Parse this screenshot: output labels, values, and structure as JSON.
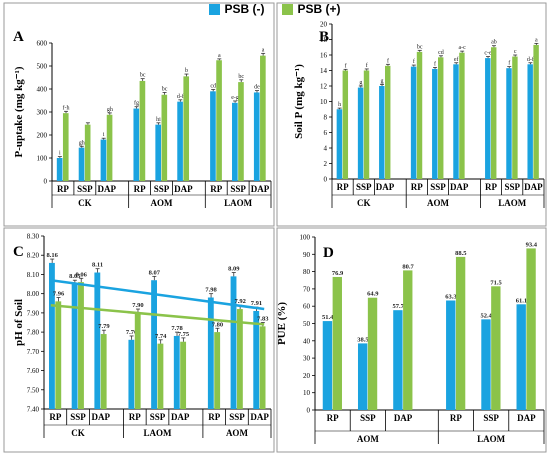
{
  "legend": [
    {
      "label": "PSB (-)",
      "color": "#1aa3e0"
    },
    {
      "label": "PSB (+)",
      "color": "#8bc34a"
    }
  ],
  "colors": {
    "psb_minus": "#1aa3e0",
    "psb_plus": "#8bc34a",
    "trend_minus": "#1aa3e0",
    "trend_plus": "#8bc34a"
  },
  "chart_data": [
    {
      "panel": "A",
      "type": "bar",
      "title": "",
      "ylabel": "P-uptake (mg kg⁻¹)",
      "xlabel": "",
      "ylim": [
        0,
        600
      ],
      "yticks": [
        0,
        100,
        200,
        300,
        400,
        500,
        600
      ],
      "ytick_labels": [
        "0",
        "100",
        "200",
        "300",
        "400",
        "500",
        "600"
      ],
      "categories": [
        "RP",
        "SSP",
        "DAP",
        "RP",
        "SSP",
        "DAP",
        "RP",
        "SSP",
        "DAP"
      ],
      "groups": [
        {
          "label": "CK",
          "count": 3
        },
        {
          "label": "AOM",
          "count": 3
        },
        {
          "label": "LAOM",
          "count": 3
        }
      ],
      "series": [
        {
          "name": "PSB (-)",
          "values": [
            100,
            145,
            180,
            315,
            245,
            345,
            390,
            340,
            385
          ],
          "errors": [
            6,
            6,
            6,
            8,
            8,
            8,
            8,
            8,
            8
          ],
          "labels": [
            "i",
            "gh",
            "i",
            "fg",
            "hi",
            "d-f",
            "cd",
            "e-g",
            "de"
          ]
        },
        {
          "name": "PSB (+)",
          "values": [
            295,
            245,
            288,
            435,
            375,
            455,
            525,
            430,
            545
          ],
          "errors": [
            8,
            8,
            8,
            10,
            10,
            10,
            6,
            10,
            10
          ],
          "labels": [
            "f-h",
            "",
            "gh",
            "bc",
            "bc",
            "b",
            "a",
            "bc",
            "a"
          ]
        }
      ]
    },
    {
      "panel": "B",
      "type": "bar",
      "title": "",
      "ylabel": "Soil P (mg kg⁻¹)",
      "xlabel": "",
      "ylim": [
        0,
        20
      ],
      "yticks": [
        0,
        2,
        4,
        6,
        8,
        10,
        12,
        14,
        16,
        18,
        20
      ],
      "ytick_labels": [
        "0",
        "2",
        "4",
        "6",
        "8",
        "10",
        "12",
        "14",
        "16",
        "18",
        "20"
      ],
      "categories": [
        "RP",
        "SSP",
        "DAP",
        "RP",
        "SSP",
        "DAP",
        "RP",
        "SSP",
        "DAP"
      ],
      "groups": [
        {
          "label": "CK",
          "count": 3
        },
        {
          "label": "AOM",
          "count": 3
        },
        {
          "label": "LAOM",
          "count": 3
        }
      ],
      "series": [
        {
          "name": "PSB (-)",
          "values": [
            9.0,
            11.8,
            12.0,
            14.5,
            14.2,
            14.8,
            15.6,
            14.3,
            14.8
          ],
          "errors": [
            0.15,
            0.2,
            0.2,
            0.2,
            0.2,
            0.2,
            0.2,
            0.2,
            0.2
          ],
          "labels": [
            "h",
            "g",
            "g",
            "f",
            "f",
            "ef",
            "c-e",
            "f",
            "d-f"
          ]
        },
        {
          "name": "PSB (+)",
          "values": [
            14.0,
            14.0,
            14.6,
            16.4,
            15.7,
            16.3,
            17.0,
            15.8,
            17.3
          ],
          "errors": [
            0.15,
            0.2,
            0.2,
            0.2,
            0.2,
            0.2,
            0.2,
            0.2,
            0.2
          ],
          "labels": [
            "f",
            "f",
            "f",
            "bc",
            "cd",
            "a-c",
            "ab",
            "c",
            "a"
          ]
        }
      ]
    },
    {
      "panel": "C",
      "type": "bar",
      "title": "",
      "ylabel": "pH of Soil",
      "xlabel": "",
      "ylim": [
        7.4,
        8.3
      ],
      "yticks": [
        7.4,
        7.5,
        7.6,
        7.7,
        7.8,
        7.9,
        8.0,
        8.1,
        8.2,
        8.3
      ],
      "ytick_labels": [
        "7.40",
        "7.50",
        "7.60",
        "7.70",
        "7.80",
        "7.90",
        "8.00",
        "8.10",
        "8.20",
        "8.30"
      ],
      "categories": [
        "RP",
        "SSP",
        "DAP",
        "RP",
        "SSP",
        "DAP",
        "RP",
        "SSP",
        "DAP"
      ],
      "groups": [
        {
          "label": "CK",
          "count": 3
        },
        {
          "label": "LAOM",
          "count": 3
        },
        {
          "label": "AOM",
          "count": 3
        }
      ],
      "series": [
        {
          "name": "PSB (-)",
          "values": [
            8.16,
            8.05,
            8.11,
            7.76,
            8.07,
            7.78,
            7.98,
            8.09,
            7.91
          ],
          "errors": [
            0.02,
            0.02,
            0.02,
            0.02,
            0.02,
            0.02,
            0.02,
            0.02,
            0.02
          ],
          "labels": [
            "8.16",
            "8.05",
            "8.11",
            "7.76",
            "8.07",
            "7.78",
            "7.98",
            "8.09",
            "7.91"
          ]
        },
        {
          "name": "PSB (+)",
          "values": [
            7.96,
            8.06,
            7.79,
            7.9,
            7.74,
            7.75,
            7.8,
            7.92,
            7.83
          ],
          "errors": [
            0.02,
            0.02,
            0.02,
            0.02,
            0.02,
            0.02,
            0.02,
            0.02,
            0.02
          ],
          "labels": [
            "7.96",
            "8.06",
            "7.79",
            "7.90",
            "7.74",
            "7.75",
            "7.80",
            "7.92",
            "7.83"
          ]
        }
      ],
      "trendlines": [
        {
          "series": "PSB (-)",
          "y_start": 8.07,
          "y_end": 7.92
        },
        {
          "series": "PSB (+)",
          "y_start": 7.94,
          "y_end": 7.84
        }
      ]
    },
    {
      "panel": "D",
      "type": "bar",
      "title": "",
      "ylabel": "PUE (%)",
      "xlabel": "",
      "ylim": [
        0,
        100
      ],
      "yticks": [
        0,
        10,
        20,
        30,
        40,
        50,
        60,
        70,
        80,
        90,
        100
      ],
      "ytick_labels": [
        "0",
        "10",
        "20",
        "30",
        "40",
        "50",
        "60",
        "70",
        "80",
        "90",
        "100"
      ],
      "categories": [
        "RP",
        "SSP",
        "DAP",
        "RP",
        "SSP",
        "DAP"
      ],
      "groups": [
        {
          "label": "AOM",
          "count": 3
        },
        {
          "label": "LAOM",
          "count": 3
        }
      ],
      "series": [
        {
          "name": "PSB (-)",
          "values": [
            51.4,
            38.5,
            57.7,
            63.3,
            52.4,
            61.1
          ],
          "labels": [
            "51.4",
            "38.5",
            "57.7",
            "63.3",
            "52.4",
            "61.1"
          ]
        },
        {
          "name": "PSB (+)",
          "values": [
            76.9,
            64.9,
            80.7,
            88.5,
            71.5,
            93.4
          ],
          "labels": [
            "76.9",
            "64.9",
            "80.7",
            "88.5",
            "71.5",
            "93.4"
          ]
        }
      ]
    }
  ]
}
